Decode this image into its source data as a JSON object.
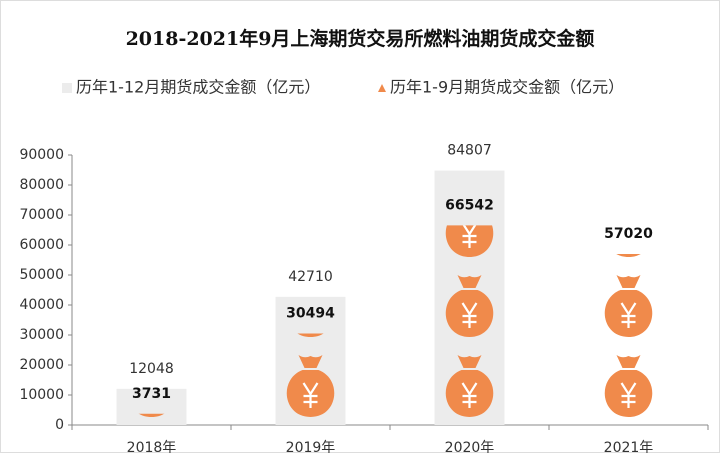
{
  "chart_data": {
    "type": "bar",
    "title": "2018-2021年9月上海期货交易所燃料油期货成交金额",
    "categories": [
      "2018年",
      "2019年",
      "2020年",
      "2021年"
    ],
    "series": [
      {
        "name": "历年1-12月期货成交金额（亿元）",
        "color": "#ececec",
        "values": [
          12048,
          42710,
          84807,
          null
        ]
      },
      {
        "name": "历年1-9月期货成交金额（亿元）",
        "color": "#f08a4b",
        "values": [
          3731,
          30494,
          66542,
          57020
        ]
      }
    ],
    "ylim": [
      0,
      90000
    ],
    "yticks": [
      0,
      10000,
      20000,
      30000,
      40000,
      50000,
      60000,
      70000,
      80000,
      90000
    ],
    "legend": "top"
  }
}
